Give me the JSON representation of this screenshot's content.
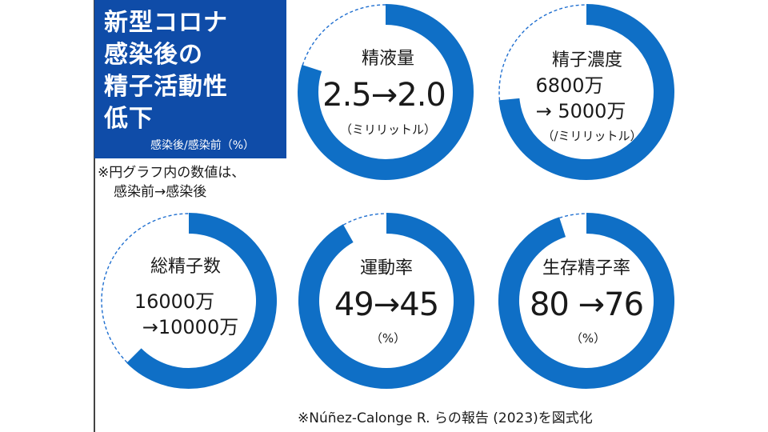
{
  "header": {
    "title_lines": [
      "新型コロナ",
      "感染後の",
      "精子活動性",
      "低下"
    ],
    "subtitle": "感染後/感染前（%）"
  },
  "note": {
    "line1": "※円グラフ内の数値は、",
    "line2": "感染前→感染後"
  },
  "source": "※Núñez-Calonge R. らの報告 (2023)を図式化",
  "colors": {
    "accent": "#0f6fc6",
    "title_bg": "#0f4ca8",
    "dashed": "#1f6fd0"
  },
  "chart_data": [
    {
      "type": "pie",
      "title": "精液量",
      "value_text": "2.5→2.0",
      "unit": "（ミリリットル）",
      "ratio_percent": 80,
      "before": 2.5,
      "after": 2.0
    },
    {
      "type": "pie",
      "title": "精子濃度",
      "value_text": "6800万",
      "value_text2": "→ 5000万",
      "unit": "（/ミリリットル）",
      "ratio_percent": 73.5,
      "before": 6800,
      "after": 5000
    },
    {
      "type": "pie",
      "title": "総精子数",
      "value_text": "16000万",
      "value_text2": "→10000万",
      "ratio_percent": 62.5,
      "before": 16000,
      "after": 10000
    },
    {
      "type": "pie",
      "title": "運動率",
      "value_text": "49→45",
      "unit": "（%）",
      "ratio_percent": 91.8,
      "before": 49,
      "after": 45
    },
    {
      "type": "pie",
      "title": "生存精子率",
      "value_text": "80 →76",
      "unit": "（%）",
      "ratio_percent": 95,
      "before": 80,
      "after": 76
    }
  ]
}
